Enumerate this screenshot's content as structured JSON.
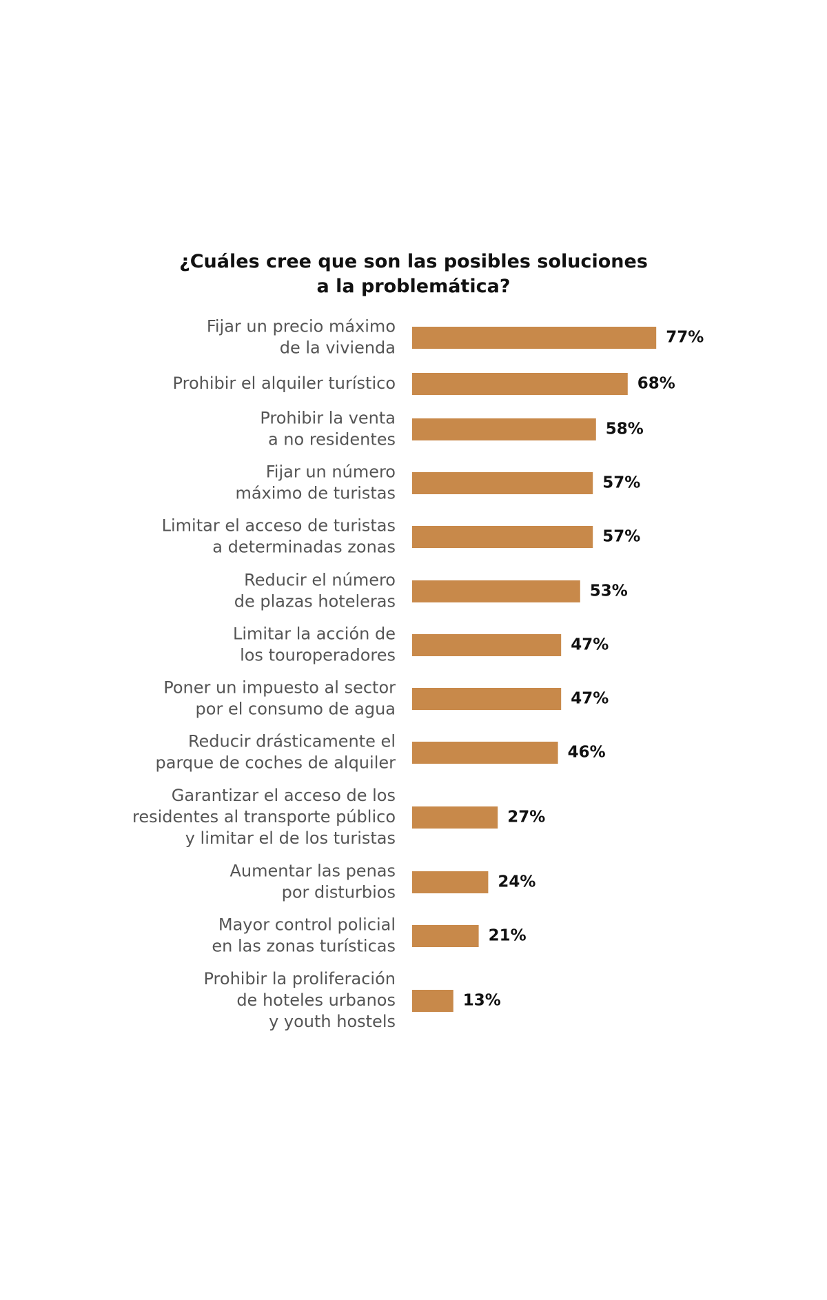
{
  "chart_data": {
    "type": "bar",
    "orientation": "horizontal",
    "title": "¿Cuáles cree que son las posibles soluciones\na la problemática?",
    "categories": [
      "Fijar un precio máximo\nde la vivienda",
      "Prohibir el alquiler turístico",
      "Prohibir la venta\na no residentes",
      "Fijar un número\nmáximo de turistas",
      "Limitar el acceso de turistas\na determinadas zonas",
      "Reducir el número\nde plazas hoteleras",
      "Limitar la acción de\nlos touroperadores",
      "Poner un impuesto al sector\npor el consumo de agua",
      "Reducir drásticamente el\nparque de coches de alquiler",
      "Garantizar el acceso de los\nresidentes al transporte público\ny limitar el de los turistas",
      "Aumentar las penas\npor disturbios",
      "Mayor control policial\nen las zonas turísticas",
      "Prohibir la proliferación\nde hoteles urbanos\ny youth hostels"
    ],
    "values": [
      77,
      68,
      58,
      57,
      57,
      53,
      47,
      47,
      46,
      27,
      24,
      21,
      13
    ],
    "value_labels": [
      "77%",
      "68%",
      "58%",
      "57%",
      "57%",
      "53%",
      "47%",
      "47%",
      "46%",
      "27%",
      "24%",
      "21%",
      "13%"
    ],
    "unit": "%",
    "xlim": [
      0,
      100
    ],
    "bar_color": "#C8894A",
    "grid": false,
    "legend": "none"
  }
}
